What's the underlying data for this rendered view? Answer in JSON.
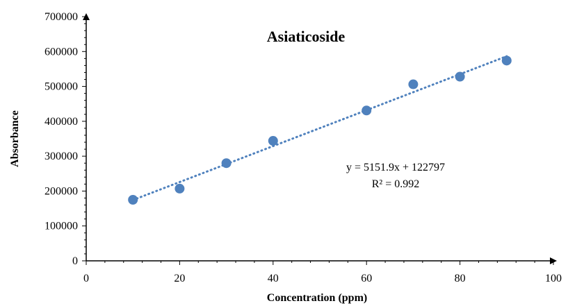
{
  "chart_data": {
    "type": "scatter",
    "title": "Asiaticoside",
    "xlabel": "Concentration (ppm)",
    "ylabel": "Absorbance",
    "xlim": [
      0,
      100
    ],
    "ylim": [
      0,
      700000
    ],
    "x_ticks": [
      "0",
      "20",
      "40",
      "60",
      "80",
      "100"
    ],
    "y_ticks": [
      "0",
      "100000",
      "200000",
      "300000",
      "400000",
      "500000",
      "600000",
      "700000"
    ],
    "grid": false,
    "legend": "none",
    "series": [
      {
        "x": [
          10,
          20,
          30,
          40,
          60,
          70,
          80,
          90
        ],
        "y": [
          175000,
          207000,
          280000,
          344000,
          431000,
          506000,
          528000,
          574000
        ]
      }
    ],
    "trendline": {
      "type": "linear",
      "style": "dotted",
      "slope": 5151.9,
      "intercept": 122797,
      "x_range": [
        10,
        90
      ],
      "equation": "y = 5151.9x + 122797",
      "r_squared": "R² = 0.992"
    },
    "colors": {
      "marker": "#4F81BD",
      "axis": "#000000"
    }
  }
}
